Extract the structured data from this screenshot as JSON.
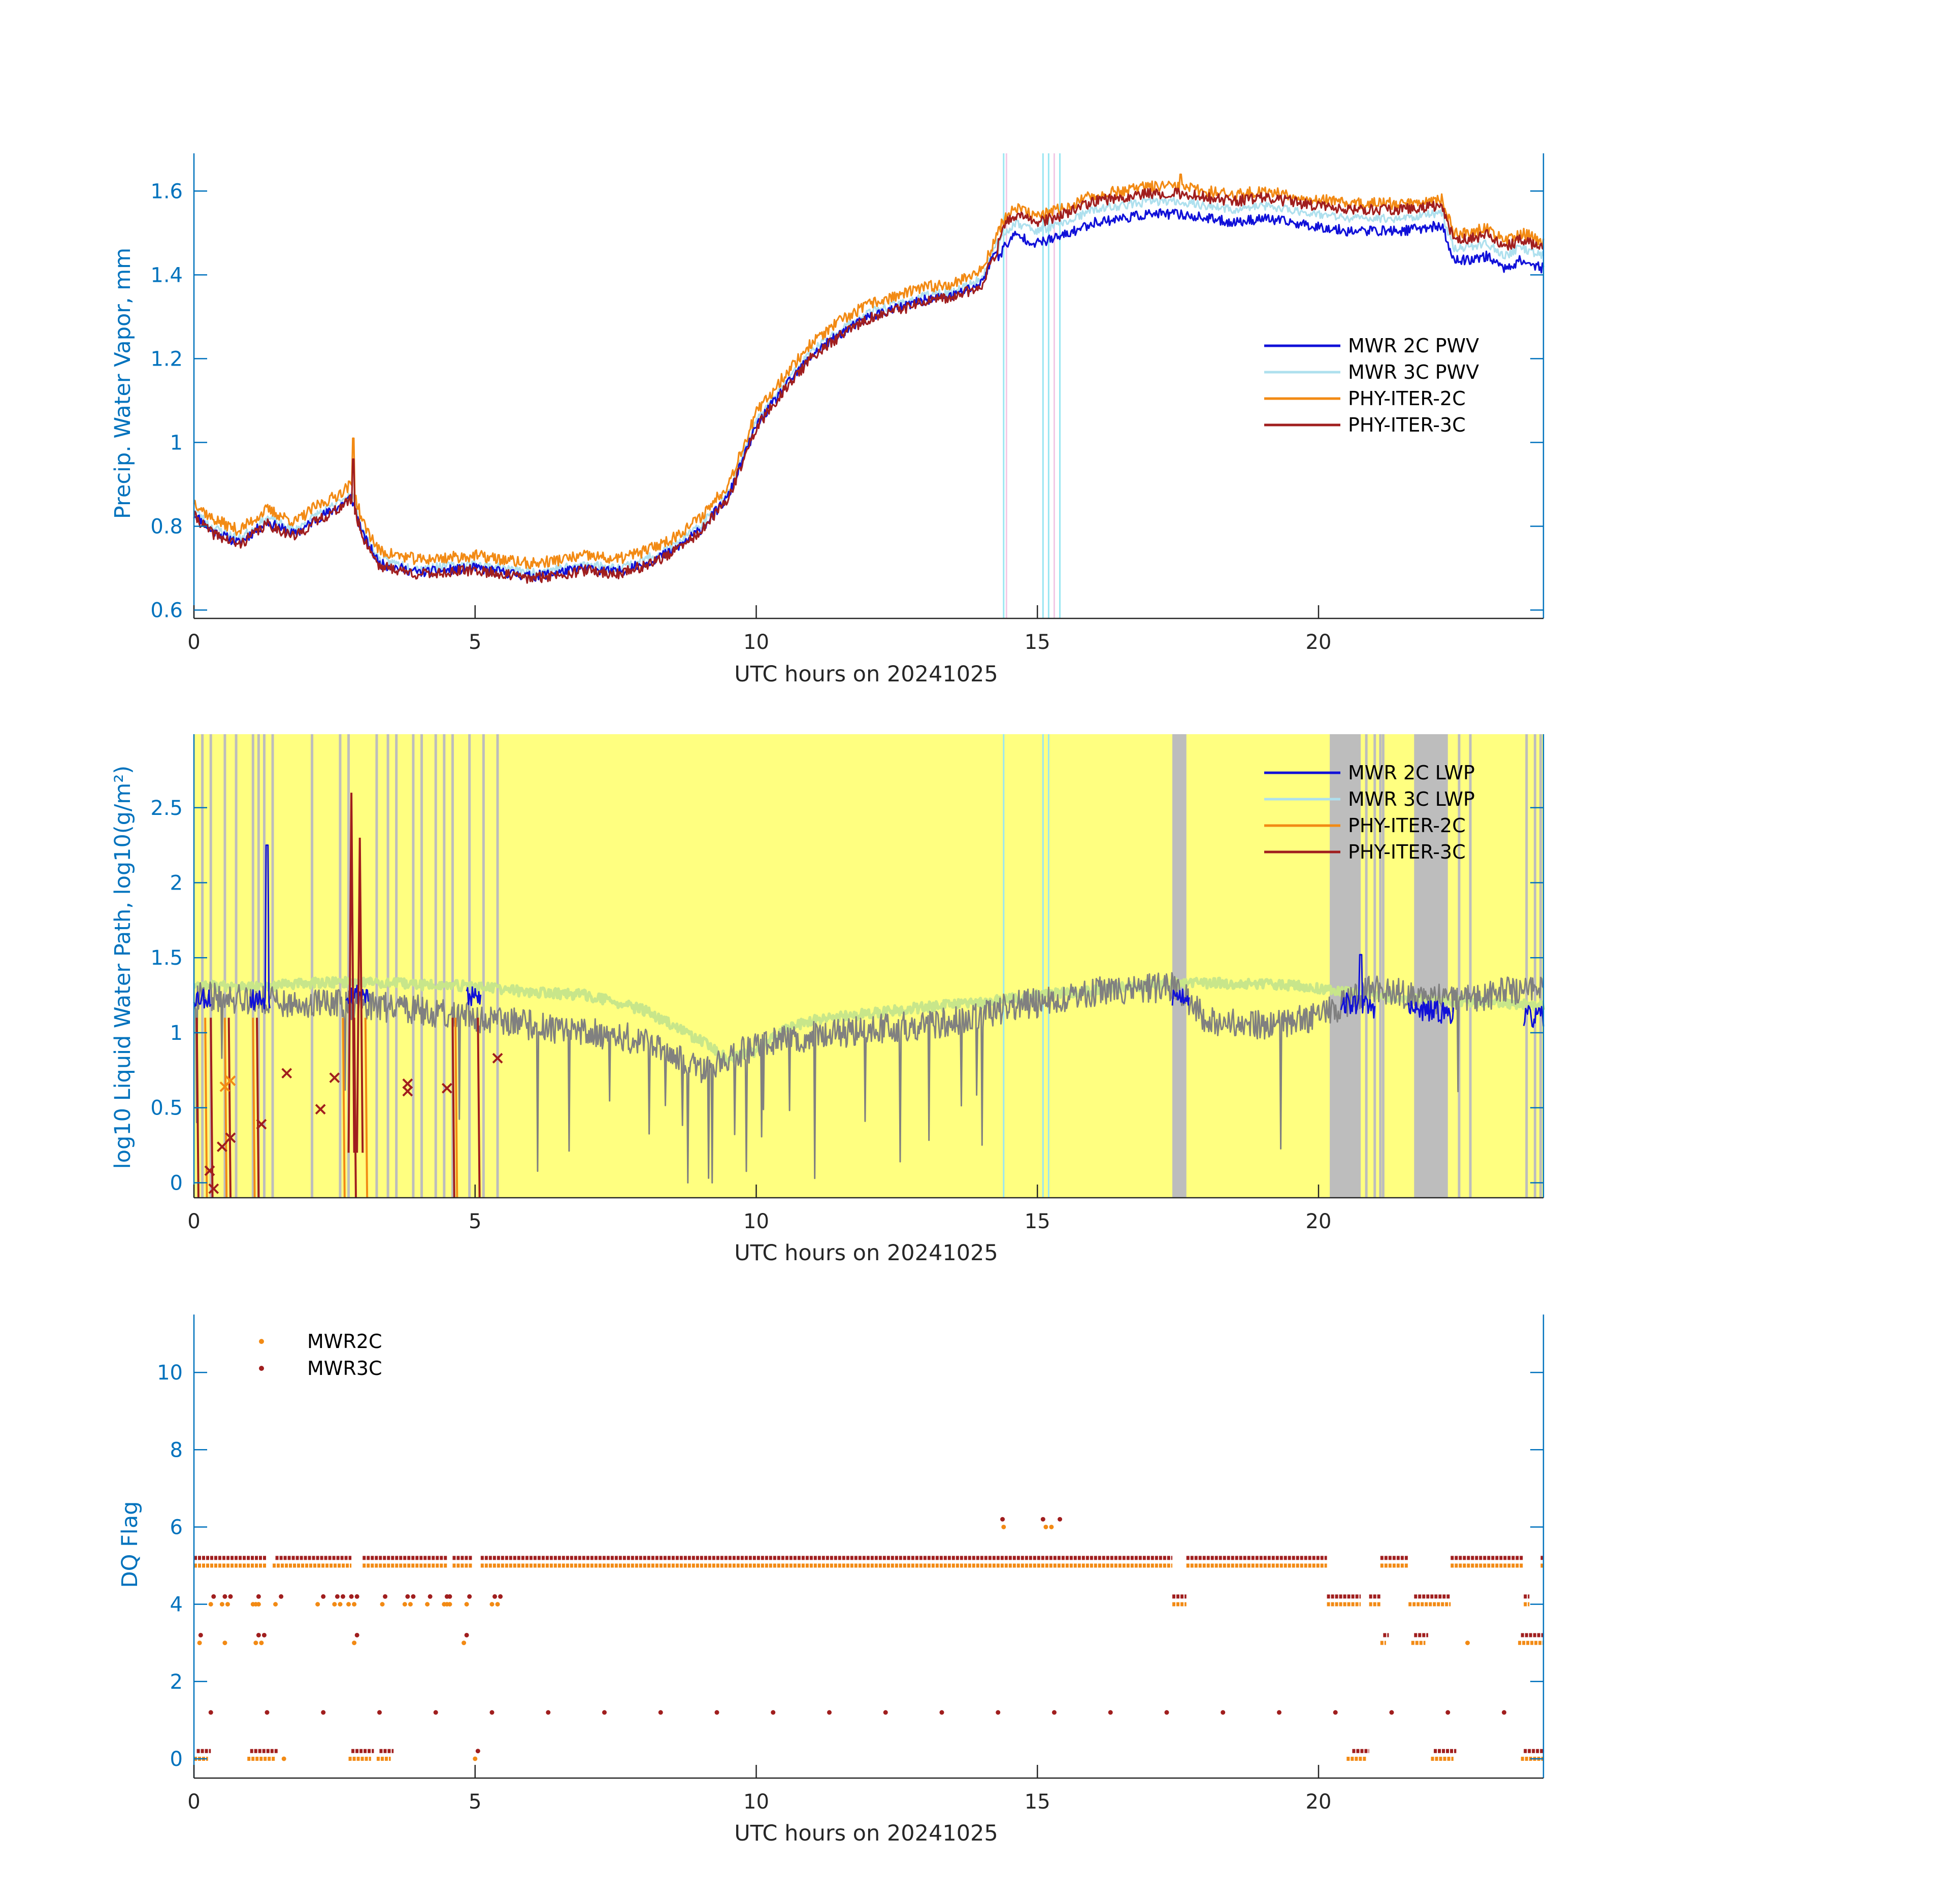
{
  "colors": {
    "mwr2c": "#1010D8",
    "mwr3c": "#AEE0EE",
    "phy2c": "#F28A14",
    "phy3c": "#A01E1E",
    "axis_y": "#0072BD",
    "axis_x": "#262626",
    "lwp_light": "#C8E68A",
    "lwp_gray": "#808080",
    "yellow_bg": "#FFFF80",
    "gray_band": "#BDBDBD",
    "cyan_line": "#99E6F2",
    "pink_line": "#F2C8E6",
    "flag_orange": "#F28A14",
    "flag_red": "#A01E1E"
  },
  "chart_data": [
    {
      "type": "line",
      "name": "pwv",
      "title": "",
      "xlabel": "UTC hours on 20241025",
      "ylabel": "Precip. Water Vapor, mm",
      "xlim": [
        0,
        24
      ],
      "ylim": [
        0.58,
        1.69
      ],
      "xticks": [
        0,
        5,
        10,
        15,
        20
      ],
      "xtick_labels": [
        "0",
        "5",
        "10",
        "15",
        "20"
      ],
      "yticks": [
        0.6,
        0.8,
        1.0,
        1.2,
        1.4,
        1.6
      ],
      "ytick_labels": [
        "0.6",
        "0.8",
        "1",
        "1.2",
        "1.4",
        "1.6"
      ],
      "legend": [
        "MWR 2C PWV",
        "MWR 3C PWV",
        "PHY-ITER-2C",
        "PHY-ITER-3C"
      ],
      "legend_location": "right",
      "vlines_cyan": [
        14.4,
        15.1,
        15.2,
        15.4
      ],
      "vlines_pink": [
        14.45,
        15.3
      ],
      "base_curve": {
        "x": [
          0,
          0.3,
          0.8,
          1.3,
          1.8,
          2.2,
          2.5,
          2.8,
          3.0,
          3.3,
          4.0,
          5.0,
          6.0,
          7.0,
          7.5,
          8.0,
          8.5,
          9.0,
          9.5,
          10.0,
          10.5,
          11.0,
          11.5,
          12.0,
          12.5,
          13.0,
          13.5,
          14.0,
          14.4,
          14.6,
          15.0,
          15.5,
          16.0,
          16.5,
          17.0,
          17.5,
          18.0,
          18.5,
          19.0,
          19.5,
          20.0,
          20.5,
          21.0,
          21.5,
          22.0,
          22.2,
          22.4,
          22.6,
          23.0,
          23.3,
          23.6,
          24.0
        ],
        "y": [
          0.83,
          0.79,
          0.76,
          0.81,
          0.78,
          0.82,
          0.84,
          0.87,
          0.78,
          0.71,
          0.69,
          0.7,
          0.68,
          0.7,
          0.69,
          0.71,
          0.74,
          0.79,
          0.87,
          1.04,
          1.13,
          1.21,
          1.26,
          1.3,
          1.32,
          1.34,
          1.35,
          1.38,
          1.5,
          1.53,
          1.51,
          1.53,
          1.56,
          1.57,
          1.58,
          1.58,
          1.57,
          1.56,
          1.57,
          1.56,
          1.55,
          1.54,
          1.54,
          1.54,
          1.55,
          1.55,
          1.47,
          1.47,
          1.48,
          1.45,
          1.47,
          1.45
        ]
      },
      "series": [
        {
          "name": "MWR 2C PWV",
          "offset_early": 0.0,
          "offset_late": -0.035,
          "noise": 0.012,
          "seed": 11
        },
        {
          "name": "MWR 3C PWV",
          "offset_early": 0.01,
          "offset_late": -0.005,
          "noise": 0.01,
          "seed": 23
        },
        {
          "name": "PHY-ITER-2C",
          "offset_early": 0.03,
          "offset_late": 0.03,
          "noise": 0.014,
          "seed": 37
        },
        {
          "name": "PHY-ITER-3C",
          "offset_early": -0.005,
          "offset_late": 0.015,
          "noise": 0.013,
          "seed": 41
        }
      ],
      "spikes": [
        {
          "x": 2.83,
          "y": 1.01,
          "series": "PHY-ITER-2C"
        },
        {
          "x": 2.83,
          "y": 0.96,
          "series": "PHY-ITER-3C"
        },
        {
          "x": 17.55,
          "y": 1.64,
          "series": "PHY-ITER-2C"
        }
      ]
    },
    {
      "type": "line",
      "name": "lwp",
      "title": "",
      "xlabel": "UTC hours on 20241025",
      "ylabel": "log10 Liquid Water Path, log10(g/m²)",
      "xlim": [
        0,
        24
      ],
      "ylim": [
        -0.1,
        2.99
      ],
      "xticks": [
        0,
        5,
        10,
        15,
        20
      ],
      "xtick_labels": [
        "0",
        "5",
        "10",
        "15",
        "20"
      ],
      "yticks": [
        0,
        0.5,
        1.0,
        1.5,
        2.0,
        2.5
      ],
      "ytick_labels": [
        "0",
        "0.5",
        "1",
        "1.5",
        "2",
        "2.5"
      ],
      "legend": [
        "MWR 2C LWP",
        "MWR 3C LWP",
        "PHY-ITER-2C",
        "PHY-ITER-3C"
      ],
      "legend_location": "top-right",
      "gray_bands": [
        [
          17.4,
          17.65
        ],
        [
          20.2,
          20.75
        ],
        [
          21.7,
          22.3
        ]
      ],
      "gray_lines": [
        0.15,
        0.3,
        0.55,
        0.75,
        1.05,
        1.15,
        1.25,
        1.4,
        2.1,
        2.6,
        2.75,
        3.25,
        3.45,
        3.6,
        3.9,
        4.05,
        4.3,
        4.45,
        4.6,
        4.9,
        5.15,
        5.4,
        20.85,
        21.0,
        21.1,
        21.15,
        22.5,
        22.7,
        23.7,
        23.85,
        23.95
      ],
      "vlines_cyan": [
        14.4,
        15.1,
        15.2
      ],
      "light_curve": {
        "x": [
          0,
          1,
          2,
          3,
          4,
          5,
          6,
          7,
          8,
          8.5,
          9.0,
          9.5,
          10.0,
          10.5,
          11,
          12,
          13,
          14,
          15,
          16,
          17,
          18,
          19,
          20,
          21,
          22,
          23,
          24
        ],
        "y": [
          1.32,
          1.3,
          1.33,
          1.34,
          1.32,
          1.31,
          1.27,
          1.25,
          1.15,
          1.05,
          0.95,
          0.82,
          0.88,
          1.02,
          1.08,
          1.13,
          1.17,
          1.2,
          1.25,
          1.28,
          1.32,
          1.33,
          1.33,
          1.3,
          1.25,
          1.22,
          1.2,
          1.18
        ]
      },
      "gray_curve": {
        "x": [
          0,
          1,
          2,
          3,
          4,
          5,
          6,
          7,
          8,
          9,
          10,
          11,
          12,
          13,
          14,
          14.5,
          15,
          16,
          17,
          17.5,
          18,
          19,
          20,
          21,
          22,
          23,
          24
        ],
        "y": [
          1.25,
          1.22,
          1.2,
          1.18,
          1.15,
          1.1,
          1.05,
          1.0,
          0.95,
          0.75,
          0.92,
          0.98,
          1.02,
          1.05,
          1.1,
          1.18,
          1.2,
          1.27,
          1.3,
          1.3,
          1.08,
          1.05,
          1.1,
          1.3,
          1.22,
          1.25,
          1.32
        ]
      },
      "blue_segments": [
        [
          0,
          0.3
        ],
        [
          1.0,
          1.35
        ],
        [
          2.7,
          3.1
        ],
        [
          4.85,
          5.1
        ],
        [
          17.4,
          17.7
        ],
        [
          20.4,
          21.0
        ],
        [
          21.6,
          22.4
        ],
        [
          23.65,
          24.0
        ]
      ],
      "spikes": [
        {
          "x": 1.3,
          "y": 2.25,
          "series": "MWR 2C LWP"
        },
        {
          "x": 2.95,
          "y": 2.3,
          "series": "PHY-ITER-3C"
        },
        {
          "x": 2.8,
          "y": 2.6,
          "series": "PHY-ITER-3C"
        },
        {
          "x": 20.75,
          "y": 1.52,
          "series": "MWR 2C LWP"
        }
      ],
      "drops": [
        0.05,
        0.2,
        0.3,
        0.55,
        0.62,
        1.05,
        1.12,
        2.65,
        2.85,
        3.05,
        4.6,
        4.65,
        5.05
      ],
      "markers": [
        {
          "x": 0.28,
          "y": 0.08,
          "color": "phy3c"
        },
        {
          "x": 0.35,
          "y": -0.04,
          "color": "phy3c"
        },
        {
          "x": 0.5,
          "y": 0.24,
          "color": "phy3c"
        },
        {
          "x": 0.55,
          "y": 0.64,
          "color": "phy2c"
        },
        {
          "x": 0.65,
          "y": 0.3,
          "color": "phy3c"
        },
        {
          "x": 0.65,
          "y": 0.68,
          "color": "phy2c"
        },
        {
          "x": 1.2,
          "y": 0.39,
          "color": "phy3c"
        },
        {
          "x": 1.65,
          "y": 0.73,
          "color": "phy3c"
        },
        {
          "x": 2.25,
          "y": 0.49,
          "color": "phy3c"
        },
        {
          "x": 2.5,
          "y": 0.7,
          "color": "phy3c"
        },
        {
          "x": 3.8,
          "y": 0.61,
          "color": "phy3c"
        },
        {
          "x": 3.8,
          "y": 0.66,
          "color": "phy3c"
        },
        {
          "x": 4.5,
          "y": 0.63,
          "color": "phy3c"
        },
        {
          "x": 5.4,
          "y": 0.83,
          "color": "phy3c"
        }
      ]
    },
    {
      "type": "scatter",
      "name": "dq",
      "title": "",
      "xlabel": "UTC hours on 20241025",
      "ylabel": "DQ Flag",
      "xlim": [
        0,
        24
      ],
      "ylim": [
        -0.5,
        11.5
      ],
      "xticks": [
        0,
        5,
        10,
        15,
        20
      ],
      "xtick_labels": [
        "0",
        "5",
        "10",
        "15",
        "20"
      ],
      "yticks": [
        0,
        2,
        4,
        6,
        8,
        10
      ],
      "ytick_labels": [
        "0",
        "2",
        "4",
        "6",
        "8",
        "10"
      ],
      "legend": [
        "MWR2C",
        "MWR3C"
      ],
      "legend_location": "top-left",
      "series": [
        {
          "name": "MWR2C",
          "bands": [
            {
              "y": 5.0,
              "ranges": [
                [
                  0,
                  1.3
                ],
                [
                  1.4,
                  2.8
                ],
                [
                  3.0,
                  4.5
                ],
                [
                  4.6,
                  4.95
                ],
                [
                  5.1,
                  17.4
                ],
                [
                  17.65,
                  20.15
                ],
                [
                  21.1,
                  21.6
                ],
                [
                  22.35,
                  23.65
                ],
                [
                  23.95,
                  24
                ]
              ]
            },
            {
              "y": 4.0,
              "ranges": [
                [
                  17.4,
                  17.65
                ],
                [
                  20.15,
                  20.75
                ],
                [
                  20.9,
                  21.1
                ],
                [
                  21.6,
                  22.35
                ],
                [
                  23.65,
                  23.75
                ]
              ]
            },
            {
              "y": 3.0,
              "ranges": [
                [
                  21.1,
                  21.2
                ],
                [
                  21.65,
                  21.9
                ],
                [
                  23.55,
                  24.0
                ]
              ]
            },
            {
              "y": 0.0,
              "ranges": [
                [
                  0,
                  0.25
                ],
                [
                  0.95,
                  1.45
                ],
                [
                  2.75,
                  3.15
                ],
                [
                  3.25,
                  3.5
                ],
                [
                  20.5,
                  20.85
                ],
                [
                  22.0,
                  22.4
                ],
                [
                  23.6,
                  24.0
                ]
              ]
            }
          ],
          "points_x_at_4": [
            0.3,
            0.5,
            0.6,
            1.05,
            1.1,
            1.15,
            1.45,
            2.2,
            2.5,
            2.6,
            2.75,
            2.85,
            3.35,
            3.75,
            3.85,
            4.15,
            4.45,
            4.5,
            4.55,
            4.85,
            5.3,
            5.4
          ],
          "points_x_at_3": [
            0.1,
            0.55,
            1.1,
            1.2,
            2.85,
            4.8,
            22.65
          ],
          "points_extra": [
            [
              14.4,
              6.0
            ],
            [
              15.15,
              6.0
            ],
            [
              15.25,
              6.0
            ],
            [
              1.6,
              0.0
            ],
            [
              5.0,
              0.0
            ]
          ]
        },
        {
          "name": "MWR3C",
          "bands": [
            {
              "y": 5.2,
              "ranges": [
                [
                  0,
                  1.3
                ],
                [
                  1.45,
                  2.8
                ],
                [
                  3.0,
                  4.5
                ],
                [
                  4.6,
                  4.95
                ],
                [
                  5.1,
                  17.4
                ],
                [
                  17.65,
                  20.15
                ],
                [
                  21.1,
                  21.6
                ],
                [
                  22.35,
                  23.65
                ],
                [
                  23.95,
                  24
                ]
              ]
            },
            {
              "y": 4.2,
              "ranges": [
                [
                  17.4,
                  17.65
                ],
                [
                  20.15,
                  20.75
                ],
                [
                  20.9,
                  21.1
                ],
                [
                  21.7,
                  22.35
                ],
                [
                  23.65,
                  23.75
                ]
              ]
            },
            {
              "y": 3.2,
              "ranges": [
                [
                  21.15,
                  21.25
                ],
                [
                  21.7,
                  21.95
                ],
                [
                  23.6,
                  24.0
                ]
              ]
            },
            {
              "y": 0.2,
              "ranges": [
                [
                  0.05,
                  0.3
                ],
                [
                  1.0,
                  1.5
                ],
                [
                  2.8,
                  3.2
                ],
                [
                  3.3,
                  3.55
                ],
                [
                  20.6,
                  20.9
                ],
                [
                  22.05,
                  22.45
                ],
                [
                  23.65,
                  24.0
                ]
              ]
            }
          ],
          "points_x_at_4": [
            0.35,
            0.55,
            0.65,
            1.15,
            1.55,
            2.3,
            2.55,
            2.65,
            2.8,
            2.9,
            3.4,
            3.8,
            3.9,
            4.2,
            4.5,
            4.55,
            4.9,
            5.35,
            5.45
          ],
          "points_x_at_3": [
            0.12,
            1.15,
            1.25,
            2.9,
            4.85
          ],
          "points_x_at_1_2": [
            0.3,
            1.3,
            2.3,
            3.3,
            4.3,
            5.3,
            6.3,
            7.3,
            8.3,
            9.3,
            10.3,
            11.3,
            12.3,
            13.3,
            14.3,
            15.3,
            16.3,
            17.3,
            18.3,
            19.3,
            20.3,
            21.3,
            22.3,
            23.3
          ],
          "points_extra": [
            [
              14.38,
              6.2
            ],
            [
              15.1,
              6.2
            ],
            [
              15.4,
              6.2
            ],
            [
              5.05,
              0.2
            ]
          ]
        }
      ]
    }
  ]
}
